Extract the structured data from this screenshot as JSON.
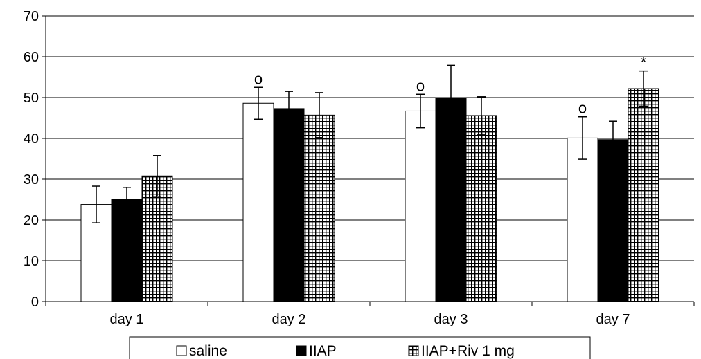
{
  "chart_data": {
    "type": "bar",
    "categories": [
      "day 1",
      "day 2",
      "day 3",
      "day 7"
    ],
    "series": [
      {
        "name": "saline",
        "values": [
          23.8,
          48.6,
          46.7,
          40.1
        ],
        "errors": [
          4.5,
          3.9,
          4.1,
          5.2
        ],
        "fill": "#ffffff",
        "pattern": "solid"
      },
      {
        "name": "IIAP",
        "values": [
          25.0,
          47.3,
          49.8,
          39.7
        ],
        "errors": [
          3.0,
          4.2,
          8.1,
          4.5
        ],
        "fill": "#000000",
        "pattern": "solid"
      },
      {
        "name": "IIAP+Riv 1 mg",
        "values": [
          30.8,
          45.7,
          45.6,
          52.2
        ],
        "errors": [
          5.0,
          5.5,
          4.6,
          4.3
        ],
        "fill": "#ffffff",
        "pattern": "checker"
      }
    ],
    "annotations": [
      {
        "category": "day 2",
        "series": "saline",
        "text": "o"
      },
      {
        "category": "day 3",
        "series": "saline",
        "text": "o"
      },
      {
        "category": "day 7",
        "series": "saline",
        "text": "o"
      },
      {
        "category": "day 7",
        "series": "IIAP+Riv 1 mg",
        "text": "*"
      }
    ],
    "y_ticks": [
      "0",
      "10",
      "20",
      "30",
      "40",
      "50",
      "60",
      "70"
    ],
    "ylim": [
      0,
      70
    ],
    "grid": true,
    "legend_position": "bottom"
  }
}
